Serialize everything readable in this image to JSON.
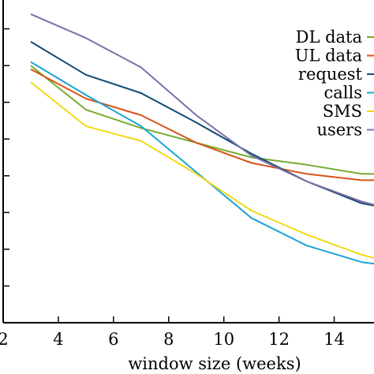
{
  "chart_data": {
    "type": "line",
    "xlabel": "window size (weeks)",
    "ylabel": "",
    "title": "",
    "xlim": [
      2,
      15.5
    ],
    "ylim": [
      0.0,
      0.9
    ],
    "x_ticks": [
      2,
      4,
      6,
      8,
      10,
      12,
      14
    ],
    "x_tick_labels": [
      "2",
      "4",
      "6",
      "8",
      "10",
      "12",
      "14"
    ],
    "y_ticks": [
      0.0,
      0.1,
      0.2,
      0.3,
      0.4,
      0.5,
      0.6,
      0.7,
      0.8,
      0.9
    ],
    "grid": false,
    "legend_position": "top-right",
    "series": [
      {
        "name": "DL data",
        "color": "#77ac30",
        "x": [
          3,
          5,
          7,
          9,
          11,
          13,
          15,
          15.5
        ],
        "y": [
          0.7,
          0.58,
          0.53,
          0.49,
          0.45,
          0.43,
          0.405,
          0.405
        ]
      },
      {
        "name": "UL data",
        "color": "#d95319",
        "x": [
          3,
          5,
          7,
          9,
          11,
          13,
          15,
          15.5
        ],
        "y": [
          0.69,
          0.61,
          0.565,
          0.49,
          0.435,
          0.405,
          0.388,
          0.388
        ]
      },
      {
        "name": "request",
        "color": "#0e4c75",
        "x": [
          3,
          5,
          7,
          9,
          11,
          13,
          15,
          15.5
        ],
        "y": [
          0.765,
          0.675,
          0.625,
          0.545,
          0.46,
          0.385,
          0.325,
          0.318
        ]
      },
      {
        "name": "calls",
        "color": "#1ba3d3",
        "x": [
          3,
          5,
          7,
          9,
          11,
          13,
          15,
          15.5
        ],
        "y": [
          0.71,
          0.62,
          0.535,
          0.41,
          0.285,
          0.21,
          0.165,
          0.16
        ]
      },
      {
        "name": "SMS",
        "color": "#f2d915",
        "x": [
          3,
          5,
          7,
          9,
          11,
          13,
          15,
          15.5
        ],
        "y": [
          0.655,
          0.535,
          0.495,
          0.405,
          0.305,
          0.24,
          0.185,
          0.175
        ]
      },
      {
        "name": "users",
        "color": "#7e6fa8",
        "x": [
          3,
          5,
          7,
          9,
          11,
          13,
          15,
          15.5
        ],
        "y": [
          0.84,
          0.775,
          0.695,
          0.565,
          0.455,
          0.385,
          0.33,
          0.32
        ]
      }
    ]
  }
}
